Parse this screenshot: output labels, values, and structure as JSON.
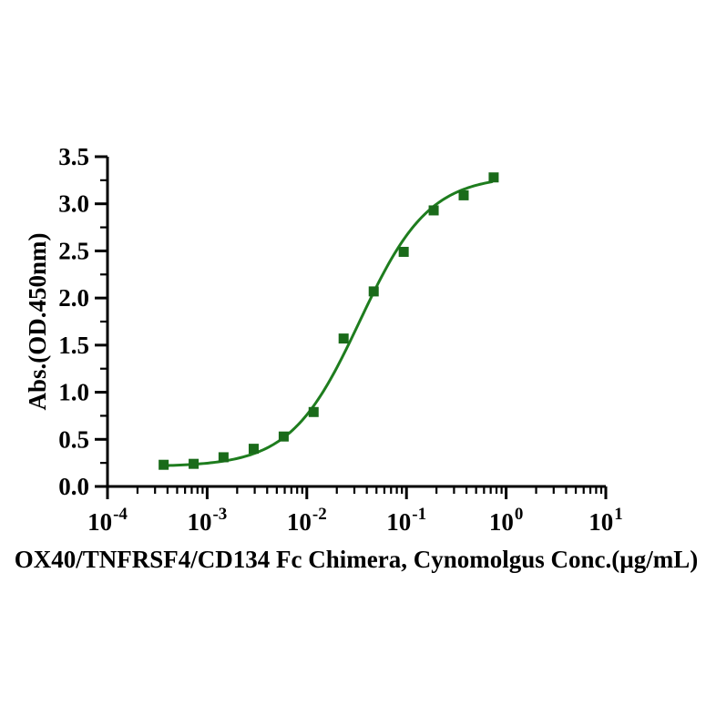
{
  "figure": {
    "background_color": "#ffffff",
    "axis_color": "#000000",
    "text_color": "#000000"
  },
  "chart_data": {
    "type": "scatter",
    "title": "",
    "xlabel": "OX40/TNFRSF4/CD134 Fc Chimera, Cynomolgus Conc.(µg/mL)",
    "ylabel": "Abs.(OD.450nm)",
    "x_scale": "log",
    "xlim": [
      0.0001,
      10
    ],
    "ylim": [
      0,
      3.5
    ],
    "x_tick_base": "10",
    "x_tick_exponents": [
      -4,
      -3,
      -2,
      -1,
      0,
      1
    ],
    "y_ticks": [
      0,
      0.5,
      1,
      1.5,
      2,
      2.5,
      3,
      3.5
    ],
    "y_tick_labels": [
      "0.0",
      "0.5",
      "1.0",
      "1.5",
      "2.0",
      "2.5",
      "3.0",
      "3.5"
    ],
    "y_minor_interval": 0.25,
    "grid": false,
    "legend": null,
    "series": [
      {
        "marker": "square",
        "marker_color": "#1a6b1a",
        "line_color": "#1e7d1e",
        "x": [
          0.000366,
          0.000732,
          0.00146,
          0.00293,
          0.00586,
          0.0117,
          0.0234,
          0.0469,
          0.0938,
          0.1875,
          0.375,
          0.75
        ],
        "y": [
          0.23,
          0.24,
          0.31,
          0.4,
          0.53,
          0.79,
          1.57,
          2.07,
          2.49,
          2.93,
          3.09,
          3.28
        ],
        "fit_curve": {
          "model": "4PL",
          "bottom": 0.21,
          "top": 3.3,
          "ec50": 0.034,
          "hill": 1.25,
          "x_range": [
            0.000366,
            0.72
          ]
        }
      }
    ]
  }
}
